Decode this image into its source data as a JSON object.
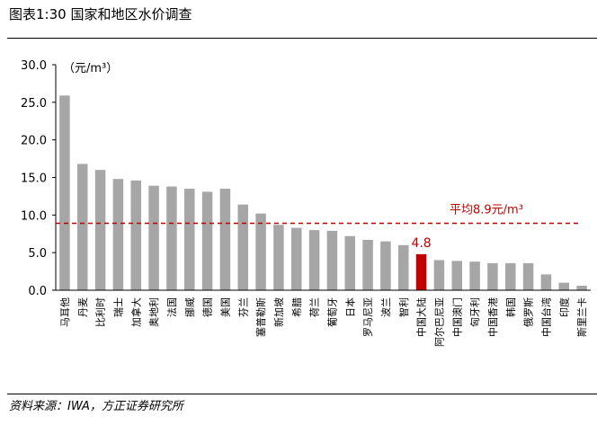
{
  "figure_title": "图表1:30 国家和地区水价调查",
  "source": "资料来源：IWA，方正证券研究所",
  "chart_data": {
    "type": "bar",
    "unit_label": "（元/m³）",
    "categories": [
      "马耳他",
      "丹麦",
      "比利时",
      "瑞士",
      "加拿大",
      "奥地利",
      "法国",
      "挪威",
      "德国",
      "美国",
      "芬兰",
      "塞普勒斯",
      "新加坡",
      "希腊",
      "荷兰",
      "葡萄牙",
      "日本",
      "罗马尼亚",
      "波兰",
      "智利",
      "中国大陆",
      "阿尔巴尼亚",
      "中国澳门",
      "匈牙利",
      "中国香港",
      "韩国",
      "俄罗斯",
      "中国台湾",
      "印度",
      "斯里兰卡"
    ],
    "values": [
      25.9,
      16.8,
      16.0,
      14.8,
      14.6,
      13.9,
      13.8,
      13.5,
      13.1,
      13.5,
      11.4,
      10.2,
      8.7,
      8.3,
      8.0,
      7.9,
      7.2,
      6.7,
      6.5,
      6.0,
      4.8,
      4.0,
      3.9,
      3.8,
      3.6,
      3.6,
      3.6,
      2.1,
      1.0,
      0.6
    ],
    "ylim": [
      0,
      30
    ],
    "yticks": [
      "0.0",
      "5.0",
      "10.0",
      "15.0",
      "20.0",
      "25.0",
      "30.0"
    ],
    "bar_color": "#a6a6a6",
    "highlight_category": "中国大陆",
    "highlight_color": "#c00000",
    "highlight_label": "4.8",
    "average": {
      "value": 8.9,
      "label": "平均8.9元/m³",
      "color": "#c00000"
    },
    "grid": false
  }
}
